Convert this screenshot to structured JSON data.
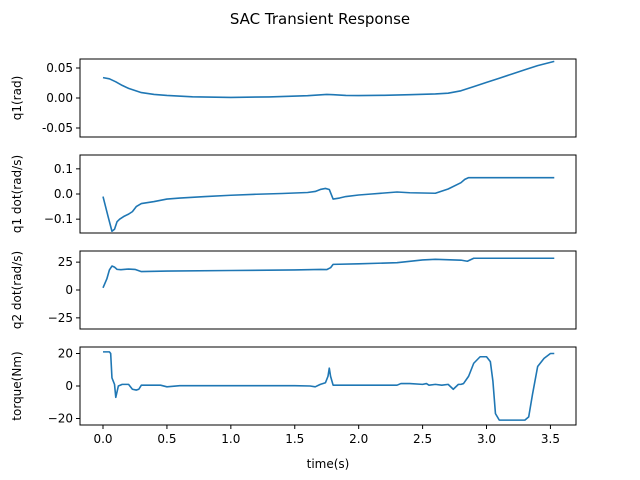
{
  "chart_data": {
    "type": "line",
    "title": "SAC Transient Response",
    "xlabel": "time(s)",
    "xlim": [
      -0.18,
      3.7
    ],
    "x_ticks": [
      0.0,
      0.5,
      1.0,
      1.5,
      2.0,
      2.5,
      3.0,
      3.5
    ],
    "x_tick_labels": [
      "0.0",
      "0.5",
      "1.0",
      "1.5",
      "2.0",
      "2.5",
      "3.0",
      "3.5"
    ],
    "series_color": "#1f77b4",
    "grid": false,
    "subplots": [
      {
        "id": "q1",
        "ylabel": "q1(rad)",
        "ylim": [
          -0.065,
          0.065
        ],
        "y_ticks": [
          -0.05,
          0.0,
          0.05
        ],
        "y_tick_labels": [
          "-0.05",
          "0.00",
          "0.05"
        ],
        "show_x_ticks": false,
        "x": [
          0.0,
          0.05,
          0.1,
          0.15,
          0.2,
          0.3,
          0.4,
          0.5,
          0.7,
          1.0,
          1.3,
          1.6,
          1.75,
          1.8,
          1.9,
          2.0,
          2.2,
          2.4,
          2.6,
          2.7,
          2.8,
          2.9,
          3.0,
          3.1,
          3.2,
          3.3,
          3.4,
          3.53
        ],
        "y": [
          0.034,
          0.032,
          0.027,
          0.021,
          0.016,
          0.009,
          0.006,
          0.0042,
          0.002,
          0.001,
          0.0018,
          0.0038,
          0.006,
          0.0055,
          0.0042,
          0.004,
          0.0045,
          0.0055,
          0.0068,
          0.008,
          0.012,
          0.019,
          0.026,
          0.033,
          0.04,
          0.047,
          0.054,
          0.061
        ]
      },
      {
        "id": "q1dot",
        "ylabel": "q1 dot(rad/s)",
        "ylim": [
          -0.155,
          0.155
        ],
        "y_ticks": [
          -0.1,
          0.0,
          0.1
        ],
        "y_tick_labels": [
          "−0.1",
          "0.0",
          "0.1"
        ],
        "show_x_ticks": false,
        "x": [
          0.0,
          0.04,
          0.07,
          0.09,
          0.11,
          0.13,
          0.16,
          0.2,
          0.23,
          0.26,
          0.3,
          0.4,
          0.5,
          0.6,
          0.8,
          1.0,
          1.2,
          1.4,
          1.6,
          1.66,
          1.7,
          1.74,
          1.77,
          1.8,
          1.85,
          1.9,
          2.0,
          2.1,
          2.2,
          2.3,
          2.4,
          2.5,
          2.6,
          2.7,
          2.8,
          2.83,
          2.86,
          3.0,
          3.2,
          3.4,
          3.53
        ],
        "y": [
          -0.01,
          -0.09,
          -0.148,
          -0.14,
          -0.11,
          -0.1,
          -0.09,
          -0.08,
          -0.07,
          -0.05,
          -0.038,
          -0.03,
          -0.02,
          -0.016,
          -0.01,
          -0.005,
          -0.001,
          0.002,
          0.006,
          0.01,
          0.018,
          0.022,
          0.018,
          -0.02,
          -0.016,
          -0.01,
          -0.004,
          0.0,
          0.004,
          0.008,
          0.005,
          0.004,
          0.003,
          0.02,
          0.045,
          0.058,
          0.065,
          0.065,
          0.065,
          0.065,
          0.065
        ]
      },
      {
        "id": "q2dot",
        "ylabel": "q2 dot(rad/s)",
        "ylim": [
          -35,
          35
        ],
        "y_ticks": [
          -25,
          0,
          25
        ],
        "y_tick_labels": [
          "−25",
          "0",
          "25"
        ],
        "show_x_ticks": false,
        "x": [
          0.0,
          0.03,
          0.05,
          0.07,
          0.09,
          0.11,
          0.14,
          0.2,
          0.25,
          0.3,
          0.5,
          1.0,
          1.5,
          1.7,
          1.75,
          1.78,
          1.8,
          2.0,
          2.3,
          2.5,
          2.6,
          2.8,
          2.85,
          2.9,
          3.2,
          3.53
        ],
        "y": [
          2,
          10,
          18,
          21.5,
          20.5,
          18.5,
          18.2,
          18.8,
          18.5,
          16.5,
          17,
          17.5,
          18,
          18.5,
          18.3,
          20,
          23,
          23.5,
          24.5,
          27,
          27.5,
          26.8,
          25.8,
          28.5,
          28.5,
          28.5
        ]
      },
      {
        "id": "torque",
        "ylabel": "torque(Nm)",
        "ylim": [
          -24,
          24
        ],
        "y_ticks": [
          -20,
          0,
          20
        ],
        "y_tick_labels": [
          "−20",
          "0",
          "20"
        ],
        "show_x_ticks": true,
        "x": [
          0.0,
          0.05,
          0.06,
          0.07,
          0.09,
          0.1,
          0.12,
          0.15,
          0.2,
          0.23,
          0.26,
          0.28,
          0.3,
          0.35,
          0.45,
          0.5,
          0.6,
          1.0,
          1.5,
          1.62,
          1.66,
          1.7,
          1.74,
          1.76,
          1.77,
          1.78,
          1.8,
          2.0,
          2.3,
          2.33,
          2.4,
          2.5,
          2.53,
          2.55,
          2.6,
          2.65,
          2.7,
          2.74,
          2.78,
          2.8,
          2.82,
          2.86,
          2.9,
          2.95,
          3.0,
          3.03,
          3.05,
          3.07,
          3.1,
          3.2,
          3.3,
          3.33,
          3.36,
          3.4,
          3.45,
          3.5,
          3.53
        ],
        "y": [
          21,
          21,
          20,
          5,
          1,
          -7,
          0,
          1,
          1,
          -2,
          -2.5,
          -2,
          0.5,
          0.5,
          0.5,
          -0.5,
          0.2,
          0.2,
          0.2,
          0,
          -0.5,
          1,
          2,
          6,
          11,
          6,
          0.5,
          0.5,
          0.5,
          1.5,
          1.5,
          1,
          1.5,
          0.5,
          1,
          0.5,
          1,
          -2,
          1,
          1,
          1.5,
          6,
          14,
          18,
          18,
          15,
          3,
          -17,
          -21,
          -21,
          -21,
          -19,
          -5,
          12,
          17,
          20,
          20
        ]
      }
    ]
  }
}
